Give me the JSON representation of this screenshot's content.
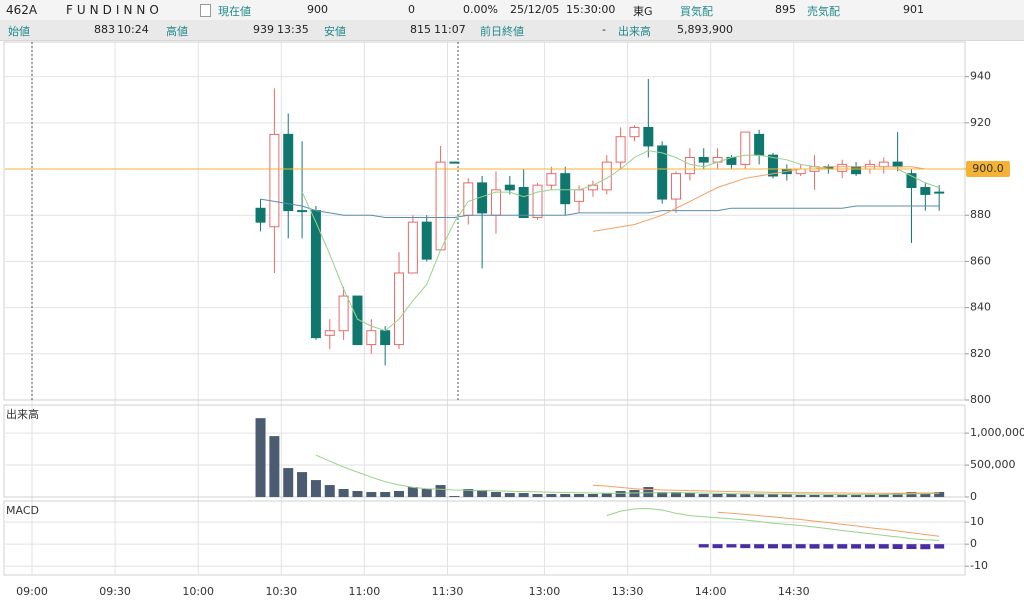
{
  "header": {
    "symbol": "462A",
    "name": "FUNDINNO",
    "current_label": "現在値",
    "current": "900",
    "change": "0",
    "change_pct": "0.00%",
    "date": "25/12/05",
    "time": "15:30:00",
    "market": "東G",
    "bid_label": "買気配",
    "bid": "895",
    "ask_label": "売気配",
    "ask": "901",
    "open_label": "始値",
    "open": "883",
    "open_time": "10:24",
    "high_label": "高値",
    "high": "939",
    "high_time": "13:35",
    "low_label": "安値",
    "low": "815",
    "low_time": "11:07",
    "prev_close_label": "前日終値",
    "prev_close": "-",
    "volume_label": "出来高",
    "volume": "5,893,900"
  },
  "chart_data": [
    {
      "type": "candlestick",
      "categories": [
        "09:00",
        null,
        null,
        null,
        null,
        null,
        "09:30",
        null,
        null,
        null,
        null,
        null,
        "10:00",
        null,
        null,
        null,
        null,
        null,
        "10:30",
        null,
        null,
        null,
        null,
        null,
        "11:00",
        null,
        null,
        null,
        null,
        null,
        "11:30",
        null,
        null,
        null,
        null,
        null,
        null,
        "13:00",
        null,
        null,
        null,
        null,
        null,
        "13:30",
        null,
        null,
        null,
        null,
        null,
        "14:00",
        null,
        null,
        null,
        null,
        null,
        "14:30",
        null,
        null,
        null,
        null,
        null,
        null,
        null,
        null,
        null,
        null,
        null,
        null
      ],
      "open": [
        null,
        null,
        null,
        null,
        null,
        null,
        null,
        null,
        null,
        null,
        null,
        null,
        null,
        null,
        null,
        null,
        883,
        875,
        915,
        882,
        882,
        828,
        830,
        845,
        824,
        830,
        824,
        855,
        877,
        865,
        903,
        880,
        894,
        880,
        893,
        892,
        879,
        893,
        898,
        886,
        891,
        891,
        903,
        914,
        918,
        910,
        887,
        898,
        905,
        903,
        905,
        902,
        915,
        906,
        900,
        898,
        899,
        901,
        899,
        901,
        900,
        901,
        903,
        898,
        892,
        890,
        null,
        null
      ],
      "high": [
        null,
        null,
        null,
        null,
        null,
        null,
        null,
        null,
        null,
        null,
        null,
        null,
        null,
        null,
        null,
        null,
        887,
        935,
        924,
        912,
        884,
        835,
        849,
        845,
        835,
        832,
        864,
        880,
        880,
        910,
        903,
        896,
        897,
        899,
        897,
        900,
        894,
        901,
        901,
        893,
        895,
        906,
        918,
        919,
        939,
        912,
        899,
        909,
        909,
        909,
        906,
        916,
        917,
        907,
        902,
        902,
        906,
        902,
        904,
        903,
        904,
        905,
        916,
        900,
        894,
        893,
        null,
        null
      ],
      "low": [
        null,
        null,
        null,
        null,
        null,
        null,
        null,
        null,
        null,
        null,
        null,
        null,
        null,
        null,
        null,
        null,
        873,
        855,
        870,
        870,
        826,
        822,
        826,
        824,
        820,
        815,
        822,
        855,
        860,
        865,
        903,
        876,
        857,
        872,
        889,
        879,
        878,
        891,
        880,
        881,
        888,
        889,
        900,
        912,
        905,
        885,
        881,
        895,
        900,
        900,
        900,
        900,
        902,
        896,
        895,
        897,
        891,
        898,
        896,
        897,
        898,
        898,
        899,
        868,
        882,
        882,
        null,
        null
      ],
      "close": [
        null,
        null,
        null,
        null,
        null,
        null,
        null,
        null,
        null,
        null,
        null,
        null,
        null,
        null,
        null,
        null,
        877,
        915,
        882,
        882,
        827,
        830,
        845,
        824,
        830,
        824,
        855,
        877,
        861,
        903,
        903,
        894,
        881,
        891,
        891,
        879,
        893,
        898,
        885,
        891,
        893,
        903,
        914,
        918,
        910,
        887,
        898,
        905,
        903,
        905,
        902,
        916,
        906,
        897,
        898,
        900,
        901,
        900,
        902,
        898,
        902,
        903,
        901,
        892,
        889,
        890,
        null,
        null
      ],
      "up_color": "#e86a6a",
      "down_color": "#10776e",
      "series": [
        {
          "color": "#5b8db0",
          "values": [
            null,
            null,
            null,
            null,
            null,
            null,
            null,
            null,
            null,
            null,
            null,
            null,
            null,
            null,
            null,
            null,
            887,
            886,
            885,
            884,
            882,
            881,
            880,
            880,
            880,
            879,
            879,
            879,
            879,
            879,
            879,
            880,
            880,
            880,
            880,
            880,
            880,
            880,
            880,
            881,
            881,
            881,
            881,
            881,
            881,
            882,
            882,
            882,
            882,
            882,
            883,
            883,
            883,
            883,
            883,
            883,
            883,
            883,
            883,
            884,
            884,
            884,
            884,
            884,
            884,
            884,
            null,
            null
          ]
        },
        {
          "color": "#96d388",
          "values": [
            null,
            null,
            null,
            null,
            null,
            null,
            null,
            null,
            null,
            null,
            null,
            null,
            null,
            null,
            null,
            null,
            null,
            null,
            null,
            890,
            877,
            863,
            848,
            835,
            832,
            830,
            835,
            843,
            850,
            865,
            877,
            886,
            888,
            890,
            890,
            888,
            890,
            891,
            891,
            891,
            893,
            896,
            900,
            905,
            908,
            907,
            905,
            902,
            901,
            903,
            905,
            906,
            906,
            905,
            904,
            902,
            901,
            900,
            900,
            900,
            900,
            900,
            900,
            897,
            894,
            892,
            null,
            null
          ]
        },
        {
          "color": "#f2a262",
          "values": [
            null,
            null,
            null,
            null,
            null,
            null,
            null,
            null,
            null,
            null,
            null,
            null,
            null,
            null,
            null,
            null,
            null,
            null,
            null,
            null,
            null,
            null,
            null,
            null,
            null,
            null,
            null,
            null,
            null,
            null,
            null,
            null,
            null,
            null,
            null,
            null,
            null,
            null,
            null,
            null,
            873,
            874,
            875,
            876,
            878,
            880,
            883,
            886,
            889,
            892,
            894,
            896,
            897,
            898,
            899,
            900,
            900,
            901,
            901,
            901,
            901,
            901,
            901,
            901,
            900,
            900,
            null,
            null
          ]
        }
      ],
      "ylim": [
        800,
        955
      ],
      "yticks": [
        800,
        820,
        840,
        860,
        880,
        900,
        920,
        940
      ],
      "grid": true,
      "last_price": {
        "value": 900,
        "label": "900.0"
      },
      "last_price_color": "#f5b335"
    },
    {
      "type": "bar",
      "title": "出来高",
      "color": "#4b5b72",
      "values": [
        null,
        null,
        null,
        null,
        null,
        null,
        null,
        null,
        null,
        null,
        null,
        null,
        null,
        null,
        null,
        null,
        1234000,
        953000,
        453000,
        390000,
        265000,
        187000,
        125000,
        94000,
        78000,
        78000,
        94000,
        156000,
        125000,
        187000,
        15000,
        125000,
        110000,
        78000,
        62000,
        62000,
        47000,
        47000,
        47000,
        47000,
        47000,
        62000,
        94000,
        110000,
        156000,
        78000,
        78000,
        62000,
        47000,
        47000,
        47000,
        47000,
        47000,
        47000,
        47000,
        31000,
        31000,
        31000,
        31000,
        31000,
        31000,
        47000,
        62000,
        78000,
        62000,
        78000,
        null,
        null
      ],
      "series": [
        {
          "color": "#96d388",
          "values": [
            null,
            null,
            null,
            null,
            null,
            null,
            null,
            null,
            null,
            null,
            null,
            null,
            null,
            null,
            null,
            null,
            null,
            null,
            null,
            null,
            656000,
            560000,
            470000,
            390000,
            310000,
            240000,
            190000,
            150000,
            130000,
            120000,
            110000,
            105000,
            100000,
            95000,
            90000,
            85000,
            80000,
            75000,
            70000,
            65000,
            62000,
            60000,
            60000,
            62000,
            65000,
            66000,
            66000,
            65000,
            62000,
            58000,
            52000,
            48000,
            47000,
            47000,
            46000,
            45000,
            42000,
            40000,
            38000,
            38000,
            39000,
            41000,
            44000,
            48000,
            52000,
            56000,
            null,
            null
          ]
        },
        {
          "color": "#f2a262",
          "values": [
            null,
            null,
            null,
            null,
            null,
            null,
            null,
            null,
            null,
            null,
            null,
            null,
            null,
            null,
            null,
            null,
            null,
            null,
            null,
            null,
            null,
            null,
            null,
            null,
            null,
            null,
            null,
            null,
            null,
            null,
            null,
            null,
            null,
            null,
            null,
            null,
            null,
            null,
            null,
            null,
            185000,
            170000,
            150000,
            130000,
            118000,
            110000,
            105000,
            100000,
            95000,
            90000,
            85000,
            80000,
            76000,
            72000,
            70000,
            68000,
            66000,
            64000,
            62000,
            61000,
            60000,
            60000,
            60000,
            61000,
            62000,
            63000,
            null,
            null
          ]
        }
      ],
      "ylim": [
        0,
        1440000
      ],
      "yticks": [
        0,
        {
          "value": 500000,
          "label": "500,000"
        },
        {
          "value": 1000000,
          "label": "1,000,000"
        }
      ],
      "grid": true
    },
    {
      "type": "macd",
      "title": "MACD",
      "histogram": {
        "color": "#4a2ca3",
        "values": [
          null,
          null,
          null,
          null,
          null,
          null,
          null,
          null,
          null,
          null,
          null,
          null,
          null,
          null,
          null,
          null,
          null,
          null,
          null,
          null,
          null,
          null,
          null,
          null,
          null,
          null,
          null,
          null,
          null,
          null,
          null,
          null,
          null,
          null,
          null,
          null,
          null,
          null,
          null,
          null,
          null,
          null,
          null,
          null,
          null,
          null,
          null,
          null,
          -1.5,
          -1.8,
          -1.5,
          -1.8,
          -1.9,
          -1.9,
          -1.9,
          -1.9,
          -2,
          -2,
          -2,
          -2,
          -2,
          -2,
          -2.2,
          -2.2,
          -2.3,
          -2,
          null,
          null
        ]
      },
      "series": [
        {
          "color": "#96d388",
          "values": [
            null,
            null,
            null,
            null,
            null,
            null,
            null,
            null,
            null,
            null,
            null,
            null,
            null,
            null,
            null,
            null,
            null,
            null,
            null,
            null,
            null,
            null,
            null,
            null,
            null,
            null,
            null,
            null,
            null,
            null,
            null,
            null,
            null,
            null,
            null,
            null,
            null,
            null,
            null,
            null,
            null,
            13,
            15,
            16,
            16.2,
            15.5,
            14,
            13,
            12.5,
            12,
            11.5,
            11,
            10.3,
            9.5,
            9,
            8.5,
            7.8,
            7,
            6.2,
            5.5,
            4.8,
            4,
            3.3,
            2.5,
            2,
            1.7,
            null,
            null
          ]
        },
        {
          "color": "#f2a262",
          "values": [
            null,
            null,
            null,
            null,
            null,
            null,
            null,
            null,
            null,
            null,
            null,
            null,
            null,
            null,
            null,
            null,
            null,
            null,
            null,
            null,
            null,
            null,
            null,
            null,
            null,
            null,
            null,
            null,
            null,
            null,
            null,
            null,
            null,
            null,
            null,
            null,
            null,
            null,
            null,
            null,
            null,
            null,
            null,
            null,
            null,
            null,
            null,
            null,
            null,
            14.5,
            14,
            13.5,
            13,
            12.4,
            11.8,
            11.2,
            10.5,
            9.8,
            9,
            8.3,
            7.5,
            6.8,
            6,
            5.2,
            4.4,
            3.6,
            null,
            null
          ]
        }
      ],
      "ylim": [
        -14,
        18.7
      ],
      "yticks": [
        -10,
        0,
        10
      ],
      "grid": true
    }
  ]
}
